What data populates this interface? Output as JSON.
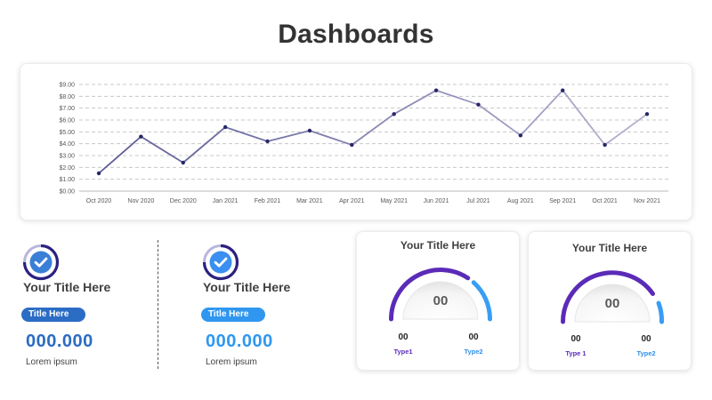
{
  "page": {
    "title": "Dashboards"
  },
  "chart_data": {
    "type": "line",
    "title": "",
    "xlabel": "",
    "ylabel": "",
    "categories": [
      "Oct 2020",
      "Nov 2020",
      "Dec 2020",
      "Jan 2021",
      "Feb 2021",
      "Mar 2021",
      "Apr 2021",
      "May 2021",
      "Jun 2021",
      "Jul 2021",
      "Aug 2021",
      "Sep 2021",
      "Oct 2021",
      "Nov 2021"
    ],
    "values": [
      1.5,
      4.6,
      2.4,
      5.4,
      4.2,
      5.1,
      3.9,
      6.5,
      8.5,
      7.3,
      4.7,
      8.5,
      3.9,
      6.5
    ],
    "ylim": [
      0,
      9
    ],
    "yticks": [
      "$0.00",
      "$1.00",
      "$2.00",
      "$3.00",
      "$4.00",
      "$5.00",
      "$6.00",
      "$7.00",
      "$8.00",
      "$9.00"
    ],
    "grid": true,
    "colors": {
      "line_first": "#5c5b96",
      "line_last": "#b4b2cf",
      "marker": "#262668",
      "grid": "#c8c8c8"
    }
  },
  "kpis": [
    {
      "title": "Your Title Here",
      "badge": "Title Here",
      "value": "000.000",
      "caption": "Lorem ipsum",
      "icon": "check-badge-icon",
      "color": "#2b6cc4"
    },
    {
      "title": "Your Title Here",
      "badge": "Title Here",
      "value": "000.000",
      "caption": "Lorem ipsum",
      "icon": "check-badge-icon",
      "color": "#2f97f0"
    }
  ],
  "gauges": [
    {
      "title": "Your Title Here",
      "center": "00",
      "type1_value": "00",
      "type1_label": "Type1",
      "type2_value": "00",
      "type2_label": "Type2",
      "type1_color": "#5b2bb8",
      "type2_color": "#3a9df5"
    },
    {
      "title": "Your Title Here",
      "center": "00",
      "type1_value": "00",
      "type1_label": "Type 1",
      "type2_value": "00",
      "type2_label": "Type2",
      "type1_color": "#5b2bb8",
      "type2_color": "#3a9df5"
    }
  ]
}
